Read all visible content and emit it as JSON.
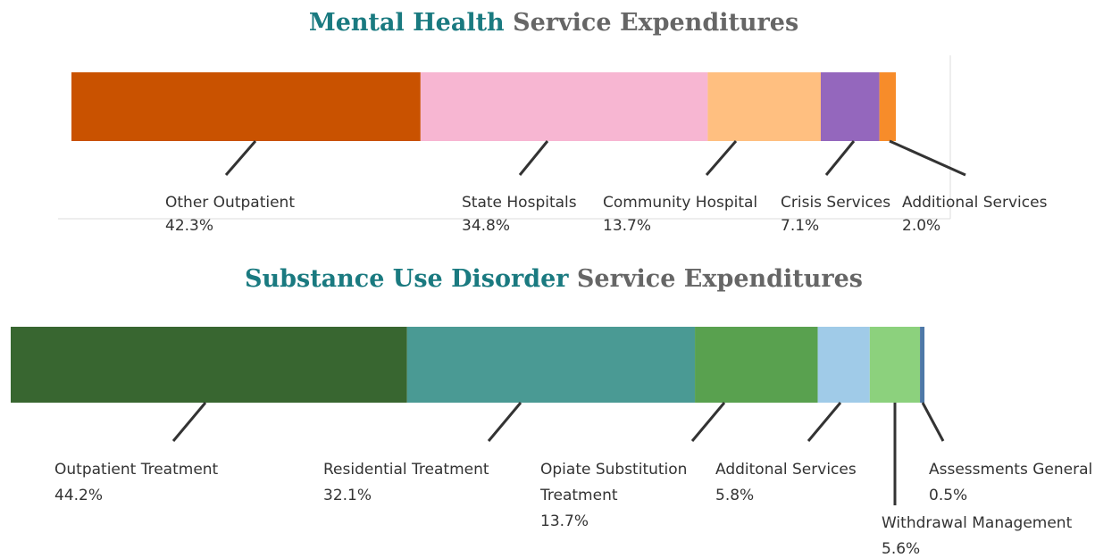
{
  "chart_data": [
    {
      "type": "stacked-bar",
      "title_parts": [
        "Mental Health",
        "Service Expenditures"
      ],
      "categories": [
        "Other Outpatient",
        "State Hospitals",
        "Community Hospital",
        "Crisis Services",
        "Additional Services"
      ],
      "values": [
        42.3,
        34.8,
        13.7,
        7.1,
        2.0
      ],
      "value_labels": [
        "42.3%",
        "34.8%",
        "13.7%",
        "7.1%",
        "2.0%"
      ],
      "colors": [
        "#c95200",
        "#f7b6d2",
        "#ffbf80",
        "#9467bd",
        "#f78c2a"
      ]
    },
    {
      "type": "stacked-bar",
      "title_parts": [
        "Substance Use Disorder",
        "Service Expenditures"
      ],
      "categories": [
        "Outpatient Treatment",
        "Residential Treatment",
        "Opiate Substitution\nTreatment",
        "Additonal Services",
        "Withdrawal Management",
        "Assessments General"
      ],
      "values": [
        44.2,
        32.1,
        13.7,
        5.8,
        5.6,
        0.5
      ],
      "value_labels": [
        "44.2%",
        "32.1%",
        "13.7%",
        "5.8%",
        "5.6%",
        "0.5%"
      ],
      "colors": [
        "#386630",
        "#4a9a94",
        "#59a14f",
        "#a0cbe8",
        "#8cd17d",
        "#4e79a7"
      ]
    }
  ]
}
